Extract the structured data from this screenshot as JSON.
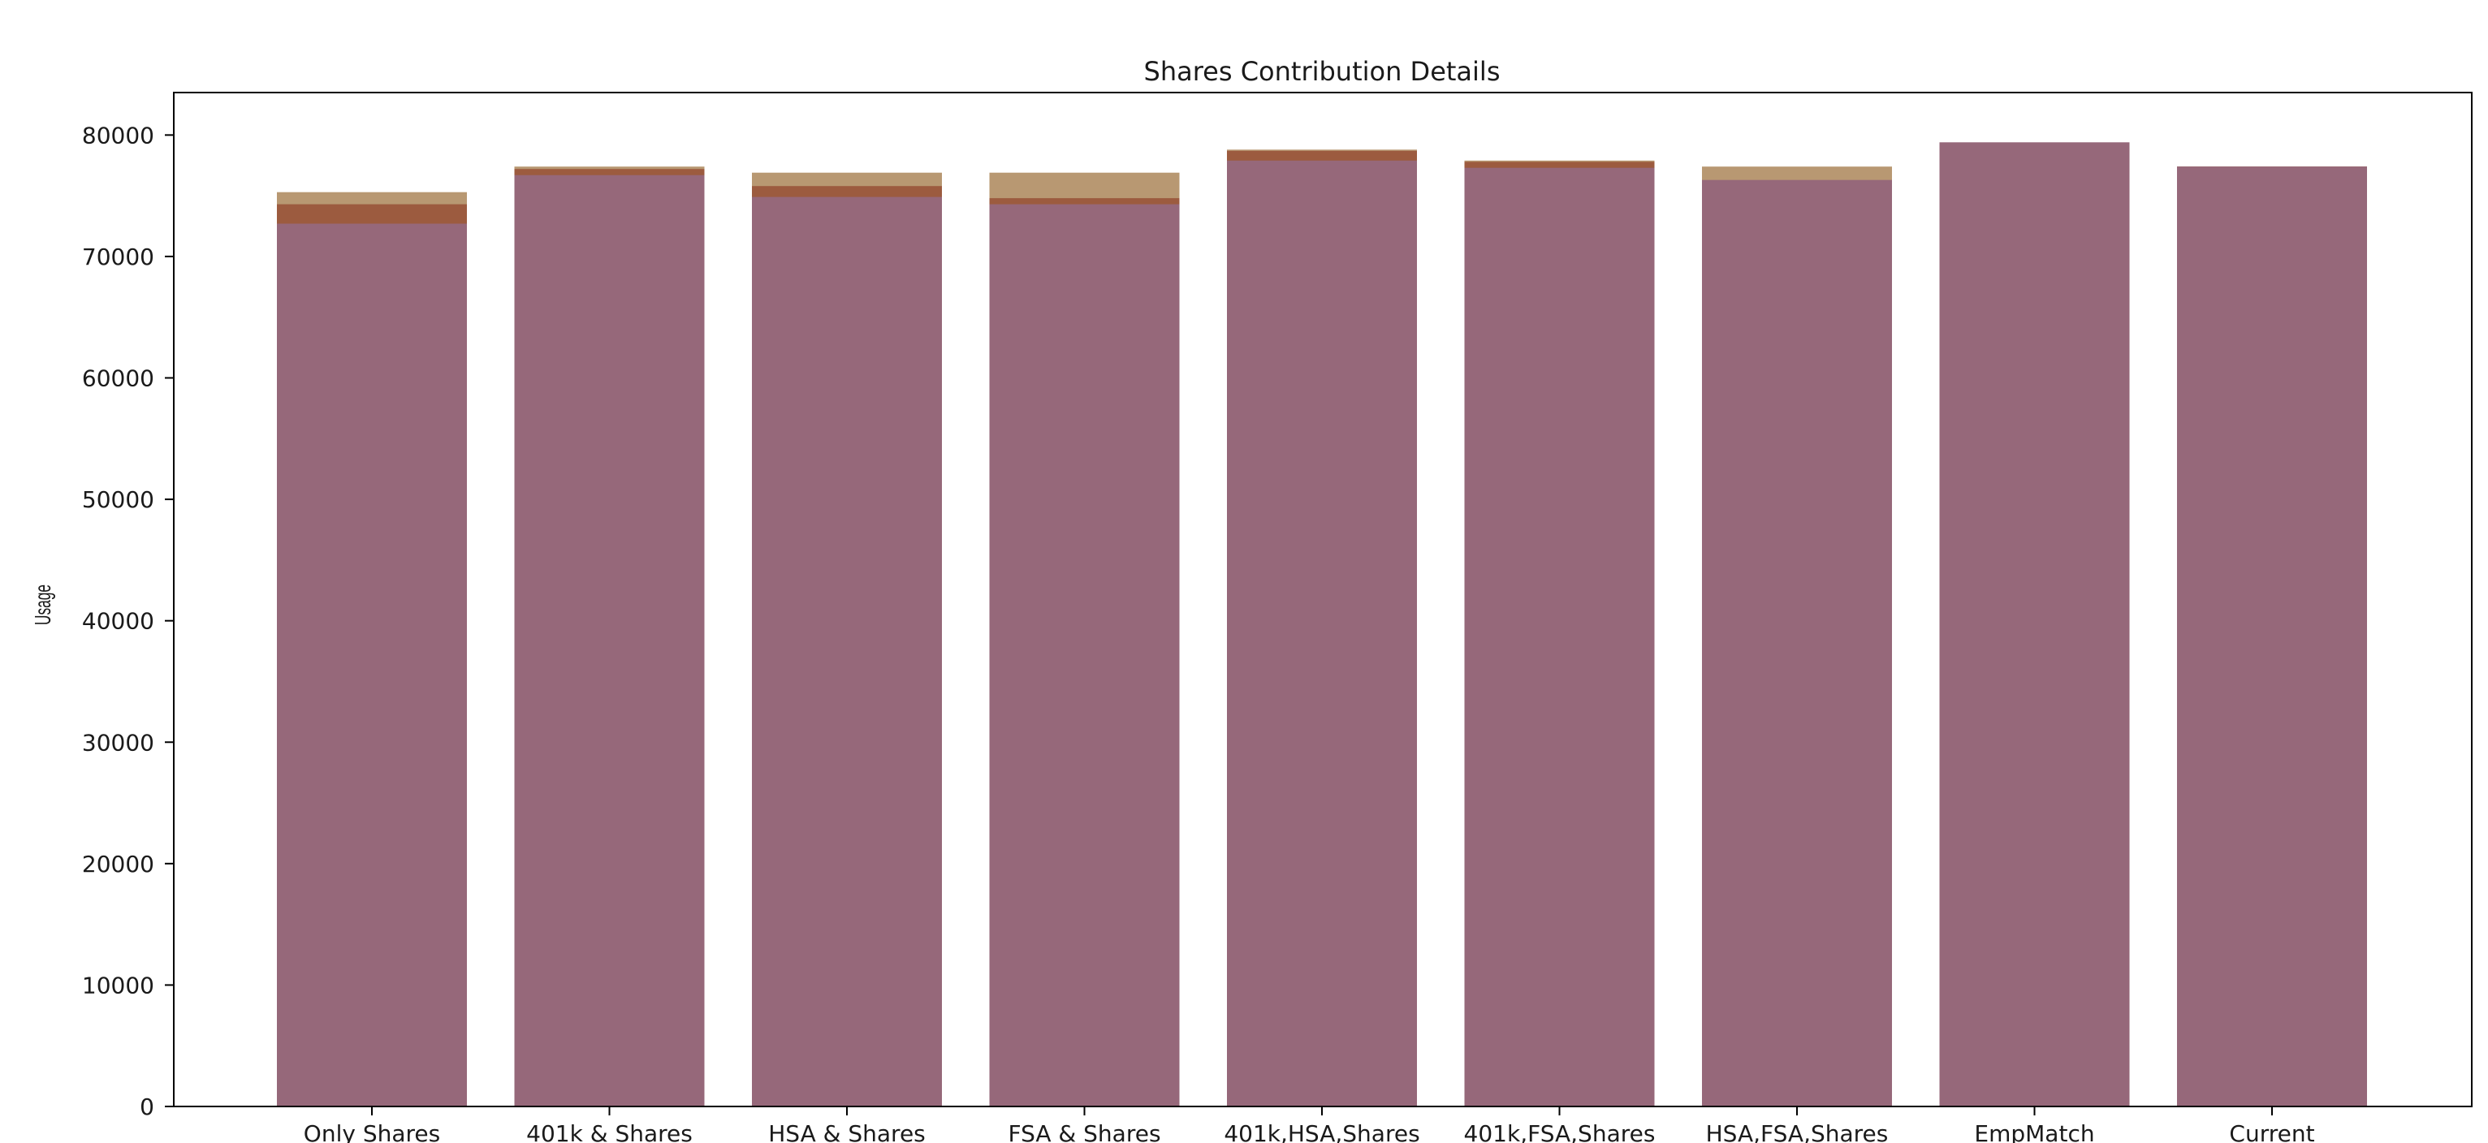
{
  "chart_data": {
    "type": "bar",
    "title": "Shares Contribution Details",
    "xlabel": "",
    "ylabel": "Usage",
    "ylim": [
      0,
      83500
    ],
    "yticks": [
      0,
      10000,
      20000,
      30000,
      40000,
      50000,
      60000,
      70000,
      80000
    ],
    "grid": false,
    "legend": "none",
    "categories": [
      "Only Shares",
      "401k & Shares",
      "HSA & Shares",
      "FSA & Shares",
      "401k,HSA,Shares",
      "401k,FSA,Shares",
      "HSA,FSA,Shares",
      "EmpMatch",
      "Current"
    ],
    "series": [
      {
        "values": [
          75300,
          77400,
          76900,
          76900,
          78800,
          77900,
          77400,
          77600,
          77400
        ],
        "color": "#b89872"
      },
      {
        "values": [
          74300,
          77200,
          75800,
          74800,
          78700,
          77800,
          76200,
          77600,
          77400
        ],
        "color": "#9c5b3f"
      },
      {
        "values": [
          72700,
          76700,
          74900,
          74300,
          77900,
          77300,
          76300,
          79400,
          77400
        ],
        "color": "#96687a"
      }
    ]
  }
}
